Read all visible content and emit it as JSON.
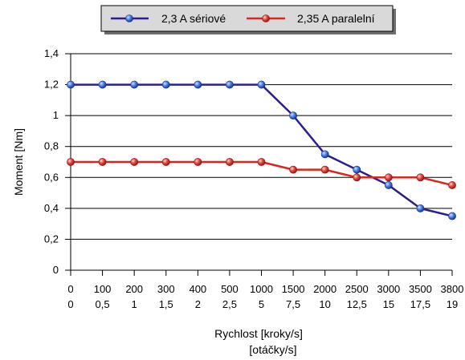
{
  "chart_data": {
    "type": "line",
    "title": "",
    "ylabel": "Moment [Nm]",
    "xlabel_lines": [
      "Rychlost [kroky/s]",
      "[otáčky/s]"
    ],
    "categories": [
      "0",
      "100",
      "200",
      "300",
      "400",
      "500",
      "1000",
      "1500",
      "2000",
      "2500",
      "3000",
      "3500",
      "3800"
    ],
    "categories_secondary": [
      "0",
      "0,5",
      "1",
      "1,5",
      "2",
      "2,5",
      "5",
      "7,5",
      "10",
      "12,5",
      "15",
      "17,5",
      "19"
    ],
    "series": [
      {
        "name": "2,3 A sériové",
        "color": "#2B1F8F",
        "values": [
          1.2,
          1.2,
          1.2,
          1.2,
          1.2,
          1.2,
          1.2,
          1.0,
          0.75,
          0.65,
          0.55,
          0.4,
          0.35
        ]
      },
      {
        "name": "2,35 A paralelní",
        "color": "#D6281E",
        "values": [
          0.7,
          0.7,
          0.7,
          0.7,
          0.7,
          0.7,
          0.7,
          0.65,
          0.65,
          0.6,
          0.6,
          0.6,
          0.55
        ]
      }
    ],
    "ylim": [
      0,
      1.4
    ],
    "y_ticks": [
      0,
      0.2,
      0.4,
      0.6,
      0.8,
      1.0,
      1.2,
      1.4
    ],
    "y_tick_labels": [
      "0",
      "0,2",
      "0,4",
      "0,6",
      "0,8",
      "1",
      "1,2",
      "1,4"
    ],
    "grid": true,
    "legend_position": "top-center"
  }
}
